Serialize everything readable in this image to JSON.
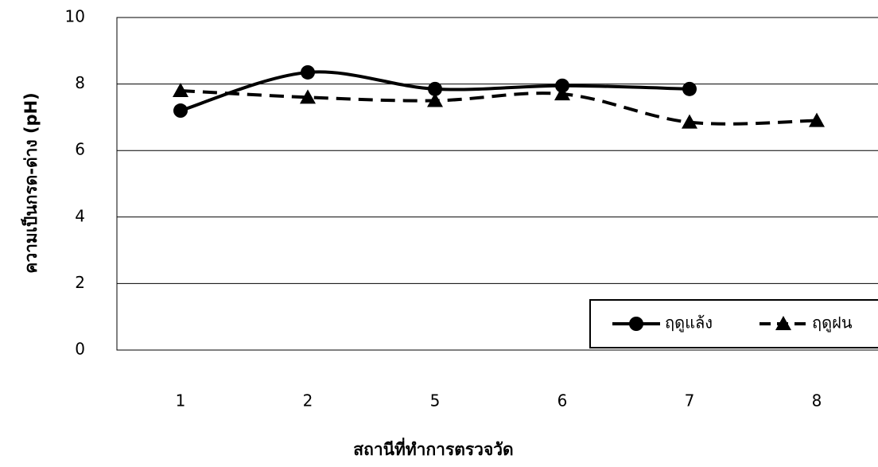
{
  "chart_data": {
    "type": "line",
    "x_label": "สถานีที่ทำการตรวจวัด",
    "y_label": "ความเป็นกรด-ด่าง (pH)",
    "categories": [
      "1",
      "2",
      "5",
      "6",
      "7",
      "8"
    ],
    "series": [
      {
        "name": "ฤดูแล้ง",
        "color": "#000000",
        "dash": false,
        "marker": "circle",
        "values": [
          7.2,
          8.35,
          7.85,
          7.95,
          7.85,
          null
        ]
      },
      {
        "name": "ฤดูฝน",
        "color": "#000000",
        "dash": true,
        "marker": "triangle",
        "values": [
          7.8,
          7.6,
          7.5,
          7.7,
          6.85,
          6.9
        ]
      }
    ],
    "ylim": [
      0,
      10
    ],
    "yticks": [
      0,
      2,
      4,
      6,
      8,
      10
    ],
    "grid": true,
    "legend": "lower right"
  }
}
